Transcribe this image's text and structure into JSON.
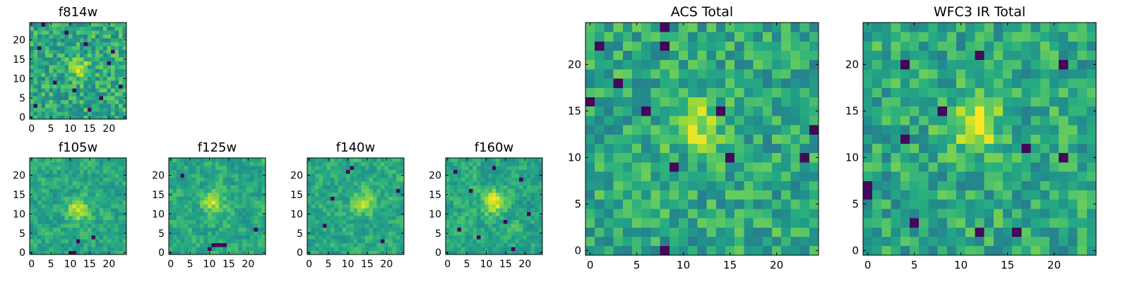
{
  "figure": {
    "colormap": "viridis",
    "colormap_stops": [
      "#440154",
      "#472f7d",
      "#3b528b",
      "#2c728e",
      "#21918c",
      "#27ad81",
      "#5ec962",
      "#aadc32",
      "#fde725"
    ]
  },
  "chart_data": [
    {
      "id": "f814w",
      "type": "heatmap",
      "title": "f814w",
      "shape": [
        25,
        25
      ],
      "xlim": [
        -0.5,
        24.5
      ],
      "ylim": [
        -0.5,
        24.5
      ],
      "xticks": [
        0,
        5,
        10,
        15,
        20
      ],
      "yticks": [
        0,
        5,
        10,
        15,
        20
      ],
      "texture": "noisy",
      "center": [
        12,
        13
      ],
      "peak_strength": 0.25,
      "seed": 17,
      "dark_pixels": [
        [
          3,
          24
        ],
        [
          9,
          22
        ],
        [
          14,
          19
        ],
        [
          2,
          18
        ],
        [
          21,
          17
        ],
        [
          6,
          9
        ],
        [
          11,
          7
        ],
        [
          18,
          5
        ],
        [
          23,
          8
        ],
        [
          1,
          3
        ],
        [
          15,
          2
        ],
        [
          20,
          14
        ]
      ]
    },
    {
      "id": "f105w",
      "type": "heatmap",
      "title": "f105w",
      "shape": [
        25,
        25
      ],
      "xlim": [
        -0.5,
        24.5
      ],
      "ylim": [
        -0.5,
        24.5
      ],
      "xticks": [
        0,
        5,
        10,
        15,
        20
      ],
      "yticks": [
        0,
        5,
        10,
        15,
        20
      ],
      "texture": "smooth",
      "center": [
        12,
        11
      ],
      "peak_strength": 0.35,
      "seed": 23,
      "dark_pixels": [
        [
          10,
          0
        ],
        [
          11,
          0
        ],
        [
          16,
          4
        ],
        [
          12,
          3
        ]
      ]
    },
    {
      "id": "f125w",
      "type": "heatmap",
      "title": "f125w",
      "shape": [
        25,
        25
      ],
      "xlim": [
        -0.5,
        24.5
      ],
      "ylim": [
        -0.5,
        24.5
      ],
      "xticks": [
        0,
        5,
        10,
        15,
        20
      ],
      "yticks": [
        0,
        5,
        10,
        15,
        20
      ],
      "texture": "smooth",
      "center": [
        11,
        13
      ],
      "peak_strength": 0.3,
      "seed": 31,
      "dark_pixels": [
        [
          11,
          2
        ],
        [
          12,
          2
        ],
        [
          13,
          2
        ],
        [
          14,
          2
        ],
        [
          10,
          1
        ],
        [
          3,
          20
        ],
        [
          22,
          6
        ]
      ]
    },
    {
      "id": "f140w",
      "type": "heatmap",
      "title": "f140w",
      "shape": [
        25,
        25
      ],
      "xlim": [
        -0.5,
        24.5
      ],
      "ylim": [
        -0.5,
        24.5
      ],
      "xticks": [
        0,
        5,
        10,
        15,
        20
      ],
      "yticks": [
        0,
        5,
        10,
        15,
        20
      ],
      "texture": "smooth",
      "center": [
        14,
        13
      ],
      "peak_strength": 0.32,
      "seed": 41,
      "dark_pixels": [
        [
          10,
          21
        ],
        [
          11,
          22
        ],
        [
          4,
          7
        ],
        [
          19,
          3
        ],
        [
          23,
          16
        ],
        [
          6,
          14
        ]
      ]
    },
    {
      "id": "f160w",
      "type": "heatmap",
      "title": "f160w",
      "shape": [
        25,
        25
      ],
      "xlim": [
        -0.5,
        24.5
      ],
      "ylim": [
        -0.5,
        24.5
      ],
      "xticks": [
        0,
        5,
        10,
        15,
        20
      ],
      "yticks": [
        0,
        5,
        10,
        15,
        20
      ],
      "texture": "smooth",
      "center": [
        12,
        13
      ],
      "peak_strength": 0.38,
      "seed": 53,
      "dark_pixels": [
        [
          2,
          21
        ],
        [
          6,
          16
        ],
        [
          19,
          19
        ],
        [
          15,
          8
        ],
        [
          8,
          4
        ],
        [
          21,
          10
        ],
        [
          3,
          6
        ],
        [
          12,
          22
        ],
        [
          17,
          1
        ]
      ]
    },
    {
      "id": "acs_total",
      "type": "heatmap",
      "title": "ACS Total",
      "shape": [
        25,
        25
      ],
      "xlim": [
        -0.5,
        24.5
      ],
      "ylim": [
        -0.5,
        24.5
      ],
      "xticks": [
        0,
        5,
        10,
        15,
        20
      ],
      "yticks": [
        0,
        5,
        10,
        15,
        20
      ],
      "texture": "noisy",
      "center": [
        11.5,
        13.5
      ],
      "peak_strength": 0.3,
      "seed": 67,
      "dark_pixels": [
        [
          8,
          24
        ],
        [
          8,
          22
        ],
        [
          3,
          18
        ],
        [
          0,
          16
        ],
        [
          6,
          15
        ],
        [
          14,
          15
        ],
        [
          24,
          13
        ],
        [
          15,
          10
        ],
        [
          23,
          10
        ],
        [
          9,
          9
        ],
        [
          8,
          0
        ],
        [
          1,
          22
        ]
      ]
    },
    {
      "id": "wfc3_ir_total",
      "type": "heatmap",
      "title": "WFC3 IR Total",
      "shape": [
        25,
        25
      ],
      "xlim": [
        -0.5,
        24.5
      ],
      "ylim": [
        -0.5,
        24.5
      ],
      "xticks": [
        0,
        5,
        10,
        15,
        20
      ],
      "yticks": [
        0,
        5,
        10,
        15,
        20
      ],
      "texture": "noisy",
      "center": [
        11.5,
        13.5
      ],
      "peak_strength": 0.35,
      "seed": 79,
      "dark_pixels": [
        [
          12,
          21
        ],
        [
          4,
          20
        ],
        [
          21,
          20
        ],
        [
          8,
          15
        ],
        [
          0,
          7
        ],
        [
          0,
          6
        ],
        [
          4,
          12
        ],
        [
          17,
          11
        ],
        [
          21,
          10
        ],
        [
          5,
          3
        ],
        [
          12,
          2
        ],
        [
          16,
          2
        ]
      ]
    }
  ]
}
